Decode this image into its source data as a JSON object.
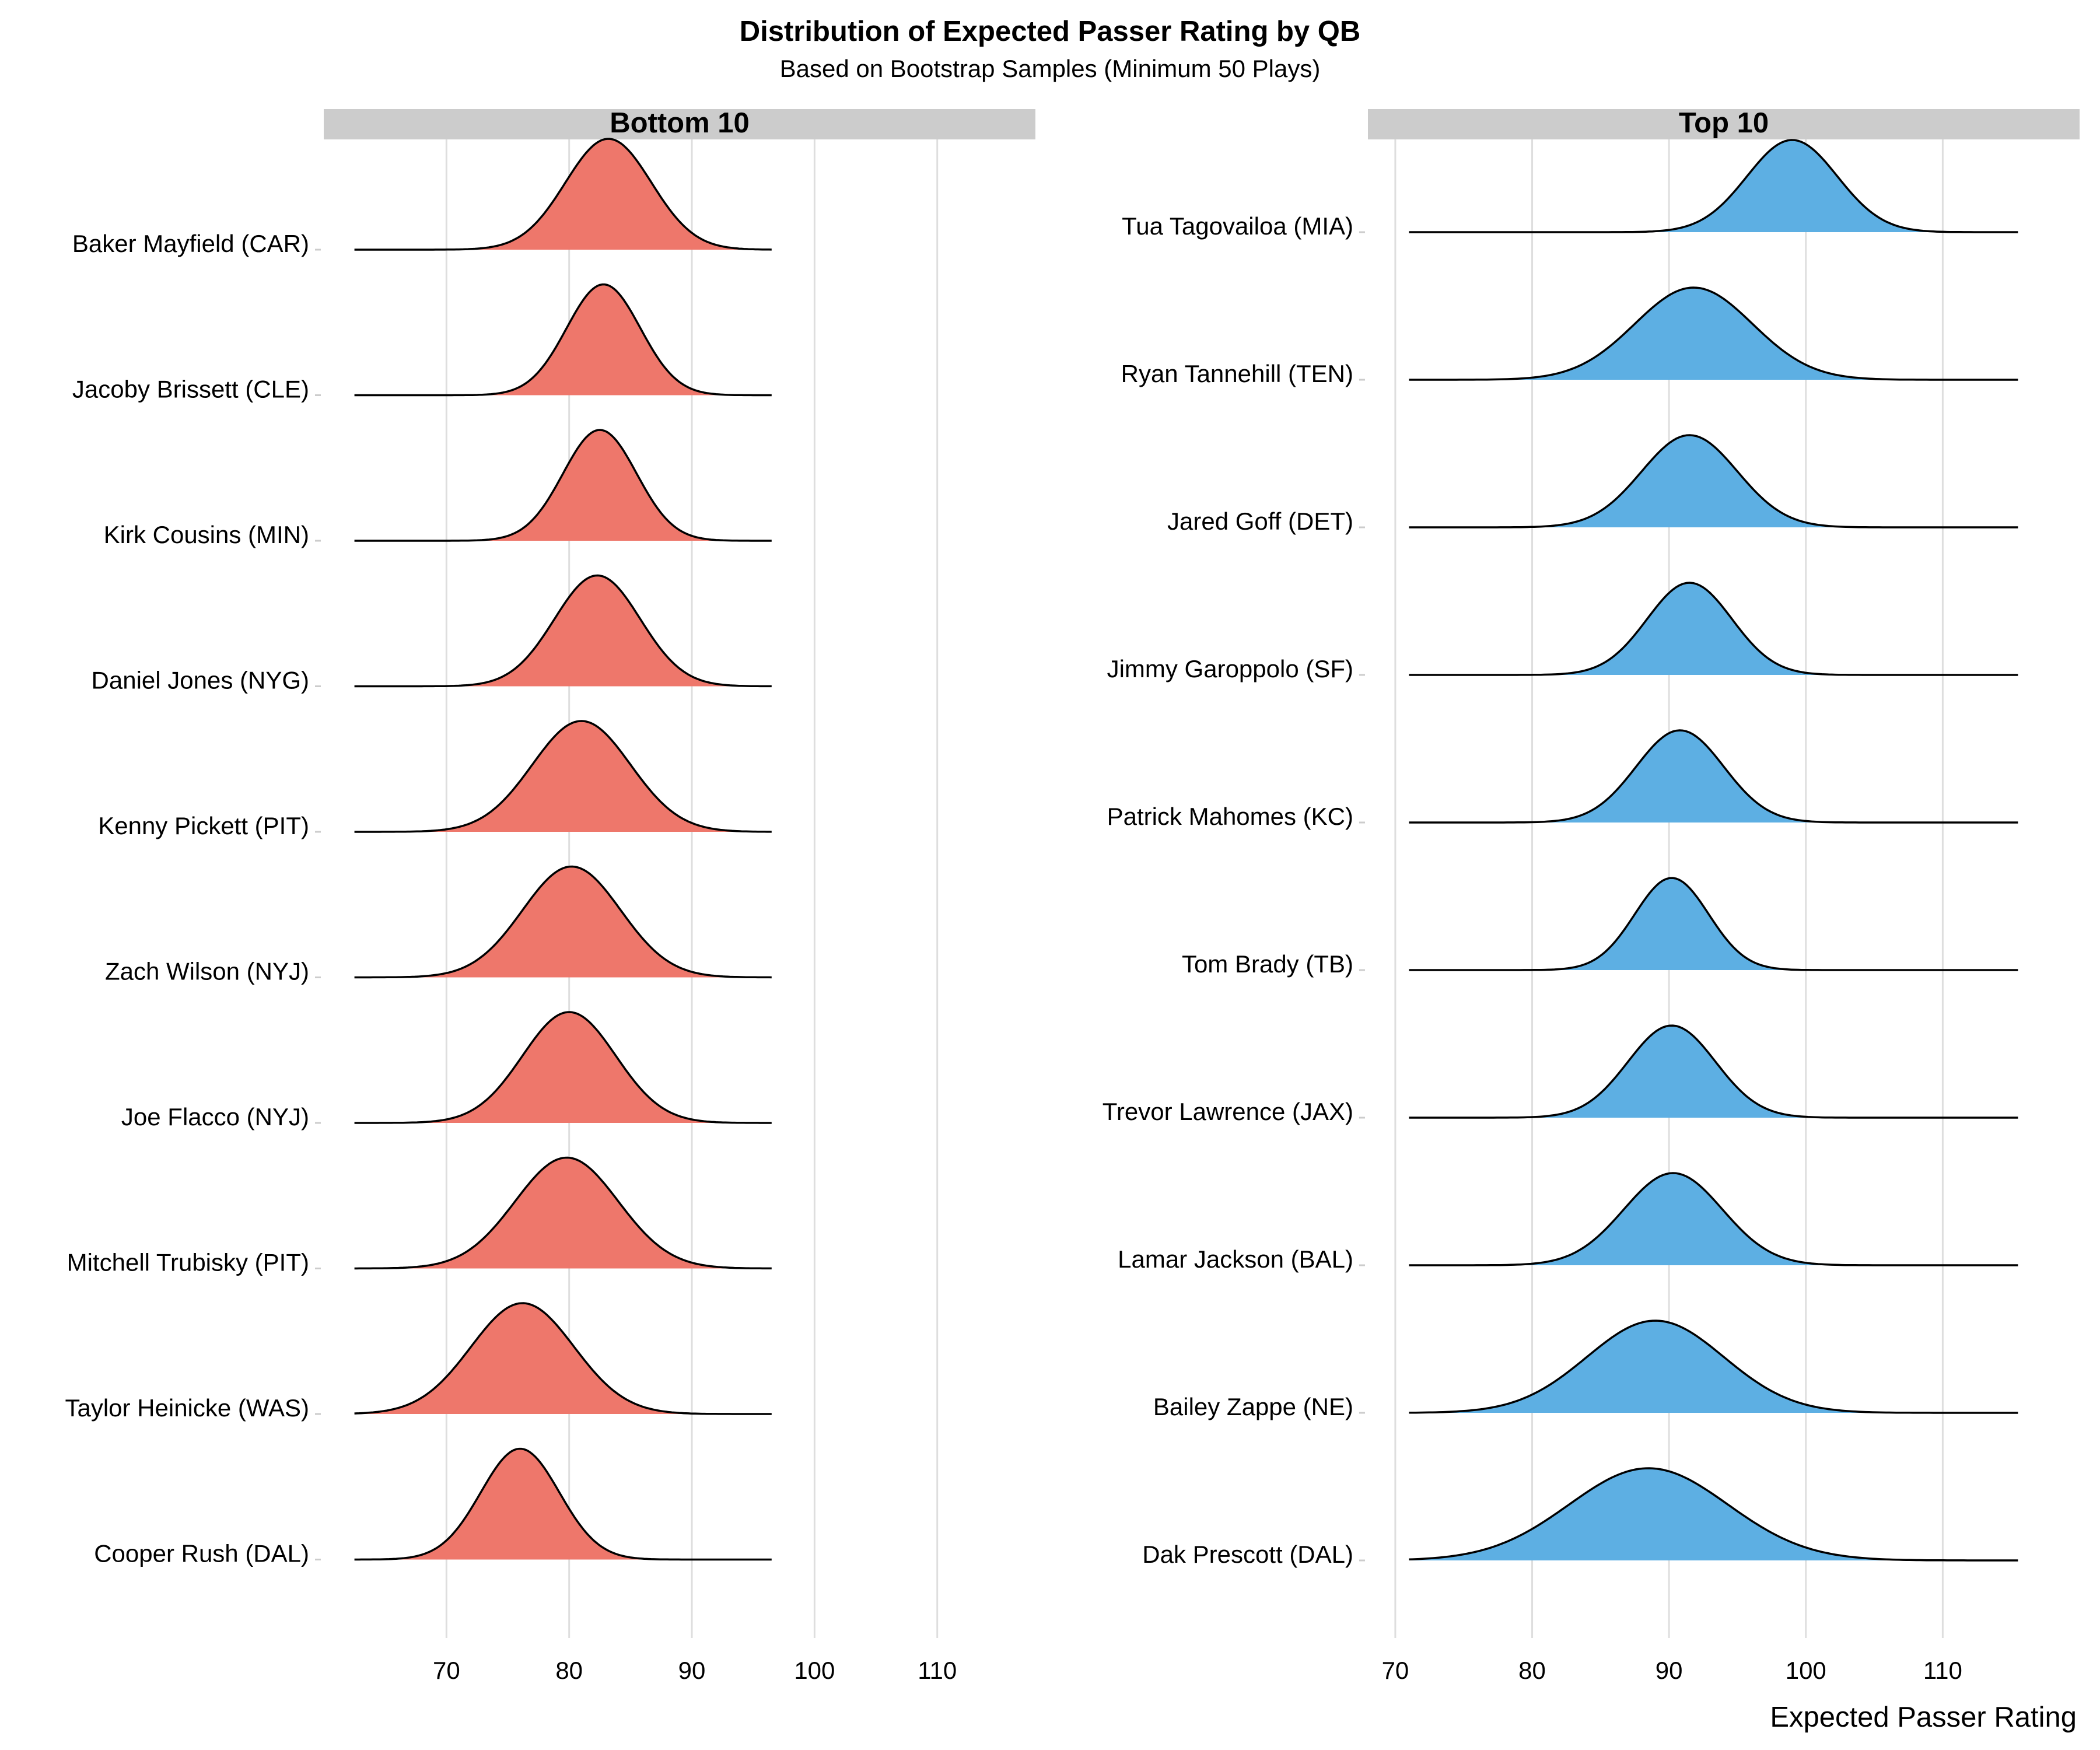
{
  "chart_data": {
    "type": "area",
    "subtype": "ridgeline-density",
    "title": "Distribution of Expected Passer Rating by QB",
    "subtitle": "Based on Bootstrap Samples (Minimum 50 Plays)",
    "xlabel": "Expected Passer Rating",
    "ylabel": "",
    "grid": "vertical major gridlines",
    "legend": "none",
    "panels": [
      {
        "strip_label": "Bottom 10",
        "fill": "#EE776B",
        "xlim": [
          60,
          118
        ],
        "x_ticks": [
          70,
          80,
          90,
          100,
          110
        ],
        "rows": [
          {
            "qb": "Baker Mayfield (CAR)",
            "mean": 83.2,
            "sd": 3.5,
            "range": [
              62.5,
              96.5
            ]
          },
          {
            "qb": "Jacoby Brissett (CLE)",
            "mean": 82.8,
            "sd": 3.0,
            "range": [
              62.5,
              96.5
            ]
          },
          {
            "qb": "Kirk Cousins (MIN)",
            "mean": 82.5,
            "sd": 3.0,
            "range": [
              62.5,
              96.5
            ]
          },
          {
            "qb": "Daniel Jones (NYG)",
            "mean": 82.3,
            "sd": 3.5,
            "range": [
              62.5,
              96.5
            ]
          },
          {
            "qb": "Kenny Pickett (PIT)",
            "mean": 81.0,
            "sd": 4.0,
            "range": [
              62.5,
              96.5
            ]
          },
          {
            "qb": "Zach Wilson (NYJ)",
            "mean": 80.2,
            "sd": 4.0,
            "range": [
              62.5,
              96.5
            ]
          },
          {
            "qb": "Joe Flacco (NYJ)",
            "mean": 80.0,
            "sd": 3.8,
            "range": [
              62.5,
              96.5
            ]
          },
          {
            "qb": "Mitchell Trubisky (PIT)",
            "mean": 79.8,
            "sd": 4.2,
            "range": [
              62.5,
              96.5
            ]
          },
          {
            "qb": "Taylor Heinicke (WAS)",
            "mean": 76.2,
            "sd": 4.2,
            "range": [
              62.5,
              96.5
            ]
          },
          {
            "qb": "Cooper Rush (DAL)",
            "mean": 76.0,
            "sd": 3.2,
            "range": [
              62.5,
              96.5
            ]
          }
        ]
      },
      {
        "strip_label": "Top 10",
        "fill": "#5DAFE3",
        "xlim": [
          68,
          120
        ],
        "x_ticks": [
          70,
          80,
          90,
          100,
          110
        ],
        "rows": [
          {
            "qb": "Tua Tagovailoa (MIA)",
            "mean": 99.0,
            "sd": 3.3,
            "range": [
              71,
              115.5
            ]
          },
          {
            "qb": "Ryan Tannehill (TEN)",
            "mean": 91.8,
            "sd": 4.3,
            "range": [
              71,
              115.5
            ]
          },
          {
            "qb": "Jared Goff (DET)",
            "mean": 91.5,
            "sd": 3.5,
            "range": [
              71,
              115.5
            ]
          },
          {
            "qb": "Jimmy Garoppolo (SF)",
            "mean": 91.5,
            "sd": 3.1,
            "range": [
              71,
              115.5
            ]
          },
          {
            "qb": "Patrick Mahomes (KC)",
            "mean": 90.8,
            "sd": 3.2,
            "range": [
              71,
              115.5
            ]
          },
          {
            "qb": "Tom Brady (TB)",
            "mean": 90.2,
            "sd": 2.7,
            "range": [
              71,
              115.5
            ]
          },
          {
            "qb": "Trevor Lawrence (JAX)",
            "mean": 90.2,
            "sd": 3.2,
            "range": [
              71,
              115.5
            ]
          },
          {
            "qb": "Lamar Jackson (BAL)",
            "mean": 90.3,
            "sd": 3.6,
            "range": [
              71,
              115.5
            ]
          },
          {
            "qb": "Bailey Zappe (NE)",
            "mean": 89.0,
            "sd": 5.0,
            "range": [
              71,
              115.5
            ]
          },
          {
            "qb": "Dak Prescott (DAL)",
            "mean": 88.5,
            "sd": 5.8,
            "range": [
              71,
              115.5
            ]
          }
        ]
      }
    ]
  }
}
